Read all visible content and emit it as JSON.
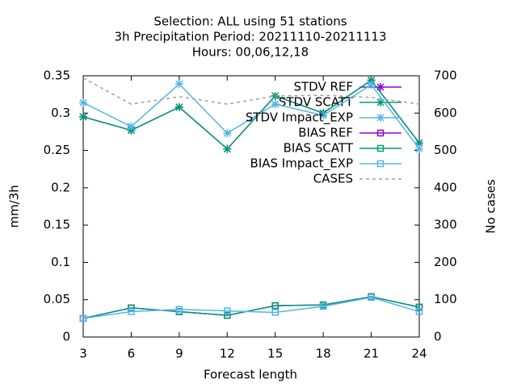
{
  "chart_data": {
    "type": "line",
    "title": [
      "Selection: ALL using    51 stations",
      "3h Precipitation   Period: 20211110-20211113",
      "Hours:  00,06,12,18"
    ],
    "xlabel": "Forecast length",
    "ylabel": "mm/3h",
    "y2label": "No cases",
    "x": [
      3,
      6,
      9,
      12,
      15,
      18,
      21,
      24
    ],
    "xlim": [
      3,
      24
    ],
    "xticks": [
      3,
      6,
      9,
      12,
      15,
      18,
      21,
      24
    ],
    "ylim": [
      0,
      0.35
    ],
    "yticks": [
      0,
      0.05,
      0.1,
      0.15,
      0.2,
      0.25,
      0.3,
      0.35
    ],
    "y2lim": [
      0,
      700
    ],
    "y2ticks": [
      0,
      100,
      200,
      300,
      400,
      500,
      600,
      700
    ],
    "legend": "top-right",
    "series": [
      {
        "name": "STDV REF",
        "color": "#9400d3",
        "marker": "star",
        "values": [
          0.295,
          0.277,
          0.308,
          0.252,
          0.323,
          0.3,
          0.344,
          0.26
        ]
      },
      {
        "name": "STDV SCATT",
        "color": "#009e73",
        "marker": "star",
        "values": [
          0.295,
          0.277,
          0.308,
          0.252,
          0.323,
          0.3,
          0.344,
          0.26
        ]
      },
      {
        "name": "STDV Impact_EXP",
        "color": "#56b4e9",
        "marker": "star",
        "values": [
          0.314,
          0.282,
          0.339,
          0.273,
          0.312,
          0.297,
          0.338,
          0.252
        ]
      },
      {
        "name": "BIAS REF",
        "color": "#9400d3",
        "marker": "square",
        "values": [
          0.025,
          0.039,
          0.034,
          0.029,
          0.042,
          0.043,
          0.054,
          0.04
        ]
      },
      {
        "name": "BIAS SCATT",
        "color": "#009e73",
        "marker": "square",
        "values": [
          0.025,
          0.039,
          0.034,
          0.029,
          0.042,
          0.043,
          0.054,
          0.04
        ]
      },
      {
        "name": "BIAS Impact_EXP",
        "color": "#56b4e9",
        "marker": "square",
        "values": [
          0.025,
          0.034,
          0.037,
          0.035,
          0.033,
          0.041,
          0.053,
          0.034
        ]
      },
      {
        "name": "CASES",
        "color": "#a0a0a0",
        "marker": "none",
        "dash": true,
        "axis": "y2",
        "values": [
          694,
          624,
          644,
          624,
          646,
          648,
          642,
          624
        ]
      }
    ]
  }
}
